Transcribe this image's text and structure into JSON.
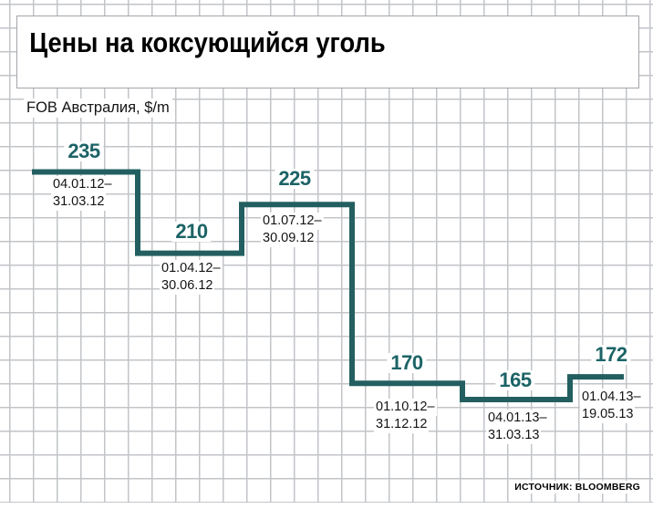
{
  "title": "Цены на коксующийся уголь",
  "subtitle": "FOB Австралия, $/m",
  "source": "ИСТОЧНИК: BLOOMBERG",
  "colors": {
    "line": "#235f60",
    "value_label": "#1c6366",
    "grid": "#c2c4c8",
    "text": "#141414"
  },
  "chart_data": {
    "type": "line",
    "variant": "step",
    "title": "Цены на коксующийся уголь",
    "ylabel": "FOB Австралия, $/m",
    "unit": "$/m",
    "grid": true,
    "legend": false,
    "ylim": [
      150,
      250
    ],
    "points": [
      {
        "value": 235,
        "period1": "04.01.12–",
        "period2": "31.03.12"
      },
      {
        "value": 210,
        "period1": "01.04.12–",
        "period2": "30.06.12"
      },
      {
        "value": 225,
        "period1": "01.07.12–",
        "period2": "30.09.12"
      },
      {
        "value": 170,
        "period1": "01.10.12–",
        "period2": "31.12.12"
      },
      {
        "value": 165,
        "period1": "04.01.13–",
        "period2": "31.03.13"
      },
      {
        "value": 172,
        "period1": "01.04.13–",
        "period2": "19.05.13"
      }
    ]
  }
}
